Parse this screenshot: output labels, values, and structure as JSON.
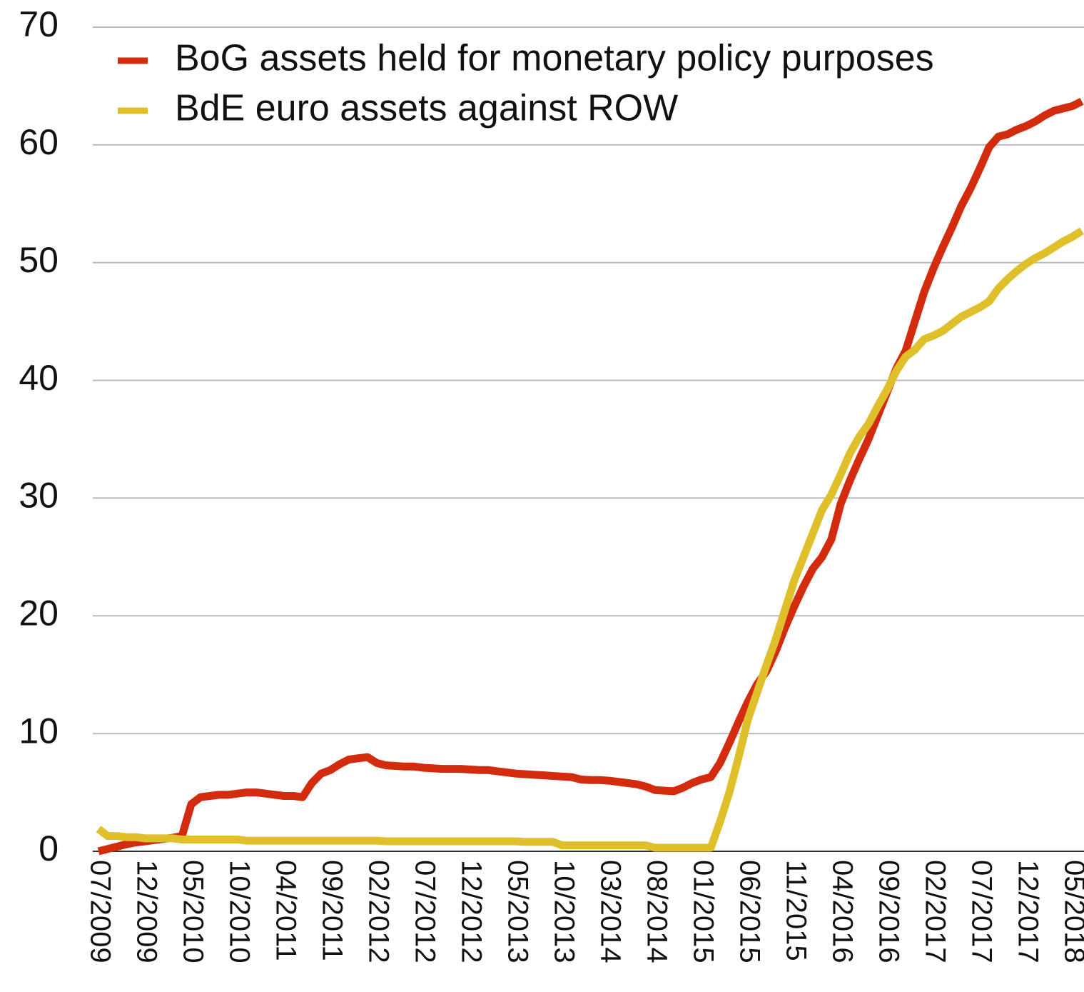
{
  "chart_data": {
    "type": "line",
    "categories": [
      "07/2009",
      null,
      null,
      null,
      null,
      "12/2009",
      null,
      null,
      null,
      null,
      "05/2010",
      null,
      null,
      null,
      null,
      "10/2010",
      null,
      null,
      null,
      null,
      "04/2011",
      null,
      null,
      null,
      null,
      "09/2011",
      null,
      null,
      null,
      null,
      "02/2012",
      null,
      null,
      null,
      null,
      "07/2012",
      null,
      null,
      null,
      null,
      "12/2012",
      null,
      null,
      null,
      null,
      "05/2013",
      null,
      null,
      null,
      null,
      "10/2013",
      null,
      null,
      null,
      null,
      "03/2014",
      null,
      null,
      null,
      null,
      "08/2014",
      null,
      null,
      null,
      null,
      "01/2015",
      null,
      null,
      null,
      null,
      "06/2015",
      null,
      null,
      null,
      null,
      "11/2015",
      null,
      null,
      null,
      null,
      "04/2016",
      null,
      null,
      null,
      null,
      "09/2016",
      null,
      null,
      null,
      null,
      "02/2017",
      null,
      null,
      null,
      null,
      "07/2017",
      null,
      null,
      null,
      null,
      "12/2017",
      null,
      null,
      null,
      null,
      "05/2018",
      null
    ],
    "series": [
      {
        "name": "BoG assets held for monetary policy purposes",
        "color": "#d22b0e",
        "values": [
          0,
          0.2,
          0.4,
          0.6,
          0.75,
          0.85,
          0.95,
          1.05,
          1.15,
          1.3,
          4.0,
          4.6,
          4.7,
          4.8,
          4.8,
          4.9,
          5.0,
          5.0,
          4.9,
          4.8,
          4.7,
          4.7,
          4.6,
          5.8,
          6.6,
          6.9,
          7.4,
          7.8,
          7.9,
          8.0,
          7.5,
          7.3,
          7.25,
          7.2,
          7.2,
          7.1,
          7.05,
          7.0,
          7.0,
          7.0,
          6.95,
          6.9,
          6.9,
          6.8,
          6.7,
          6.6,
          6.55,
          6.5,
          6.45,
          6.4,
          6.35,
          6.3,
          6.1,
          6.05,
          6.05,
          6.0,
          5.9,
          5.8,
          5.7,
          5.5,
          5.2,
          5.15,
          5.1,
          5.4,
          5.8,
          6.1,
          6.3,
          7.5,
          9.2,
          11.0,
          12.7,
          14.2,
          15.3,
          17.0,
          19.0,
          20.8,
          22.5,
          24.0,
          25.0,
          26.5,
          29.5,
          31.5,
          33.3,
          35.0,
          37.0,
          39.0,
          41.0,
          42.5,
          45.0,
          47.5,
          49.5,
          51.3,
          53.0,
          54.8,
          56.3,
          58.0,
          59.8,
          60.7,
          60.9,
          61.3,
          61.6,
          62.0,
          62.5,
          62.9,
          63.1,
          63.3,
          63.7
        ]
      },
      {
        "name": "BdE euro assets against ROW",
        "color": "#e0c02a",
        "values": [
          1.9,
          1.3,
          1.3,
          1.2,
          1.2,
          1.1,
          1.1,
          1.1,
          1.1,
          1.0,
          1.0,
          1.0,
          1.0,
          1.0,
          1.0,
          1.0,
          0.9,
          0.9,
          0.9,
          0.9,
          0.9,
          0.9,
          0.9,
          0.9,
          0.9,
          0.9,
          0.9,
          0.9,
          0.9,
          0.9,
          0.9,
          0.85,
          0.85,
          0.85,
          0.85,
          0.85,
          0.85,
          0.85,
          0.85,
          0.85,
          0.85,
          0.85,
          0.85,
          0.85,
          0.85,
          0.85,
          0.8,
          0.8,
          0.8,
          0.8,
          0.5,
          0.5,
          0.5,
          0.5,
          0.5,
          0.5,
          0.5,
          0.5,
          0.5,
          0.5,
          0.3,
          0.3,
          0.3,
          0.3,
          0.3,
          0.3,
          0.3,
          2.5,
          5.0,
          8.0,
          11.2,
          13.5,
          15.8,
          18.0,
          20.5,
          23.0,
          25.0,
          27.0,
          29.0,
          30.3,
          32.0,
          33.8,
          35.2,
          36.3,
          37.8,
          39.2,
          40.8,
          42.0,
          42.6,
          43.5,
          43.8,
          44.2,
          44.8,
          45.4,
          45.8,
          46.2,
          46.7,
          47.8,
          48.6,
          49.3,
          49.9,
          50.4,
          50.8,
          51.3,
          51.8,
          52.2,
          52.7
        ]
      }
    ],
    "ylim": [
      0,
      70
    ],
    "yticks": [
      0,
      10,
      20,
      30,
      40,
      50,
      60,
      70
    ],
    "grid": true,
    "legend": "top-left"
  }
}
